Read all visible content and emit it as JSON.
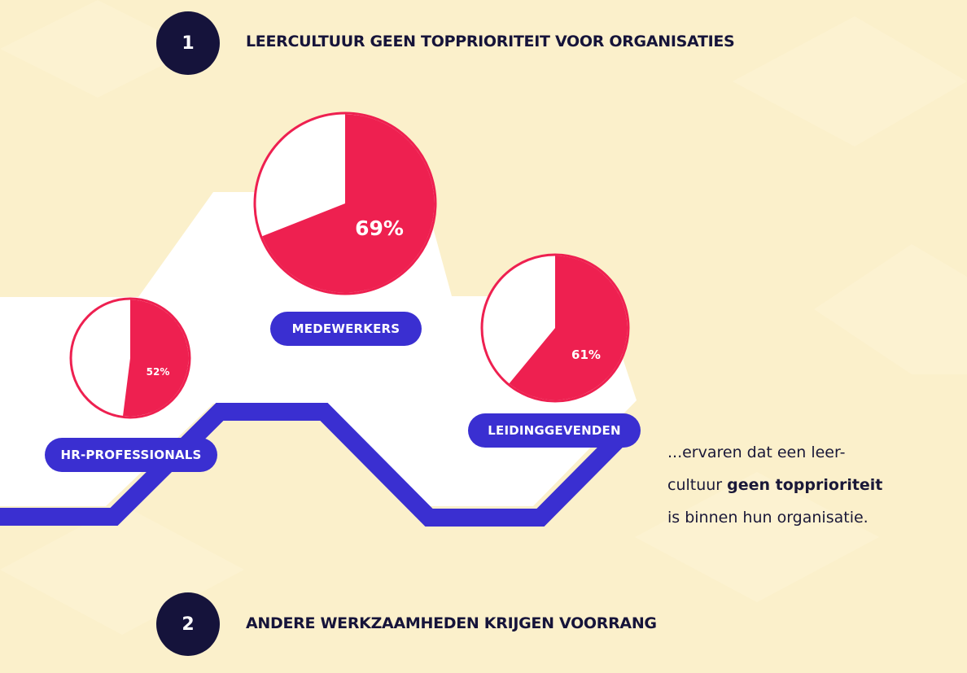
{
  "sections": [
    {
      "number": "1",
      "title": "LEERCULTUUR GEEN TOPPRIORITEIT VOOR ORGANISATIES"
    },
    {
      "number": "2",
      "title": "ANDERE WERKZAAMHEDEN KRIJGEN VOORRANG"
    }
  ],
  "statement": {
    "line1": "...ervaren dat een leer-",
    "line2_pre": "cultuur ",
    "line2_bold": "geen topprioriteit",
    "line3": "is binnen hun organisatie."
  },
  "colors": {
    "background": "#fbf0cb",
    "accent_pink": "#ee2050",
    "accent_blue": "#3a2fd1",
    "dark_navy": "#15133b",
    "white": "#ffffff"
  },
  "chart_data": {
    "type": "pie",
    "unit": "%",
    "charts": [
      {
        "category": "HR-PROFESSIONALS",
        "value": 52,
        "label": "52%"
      },
      {
        "category": "MEDEWERKERS",
        "value": 69,
        "label": "69%"
      },
      {
        "category": "LEIDINGGEVENDEN",
        "value": 61,
        "label": "61%"
      }
    ]
  }
}
